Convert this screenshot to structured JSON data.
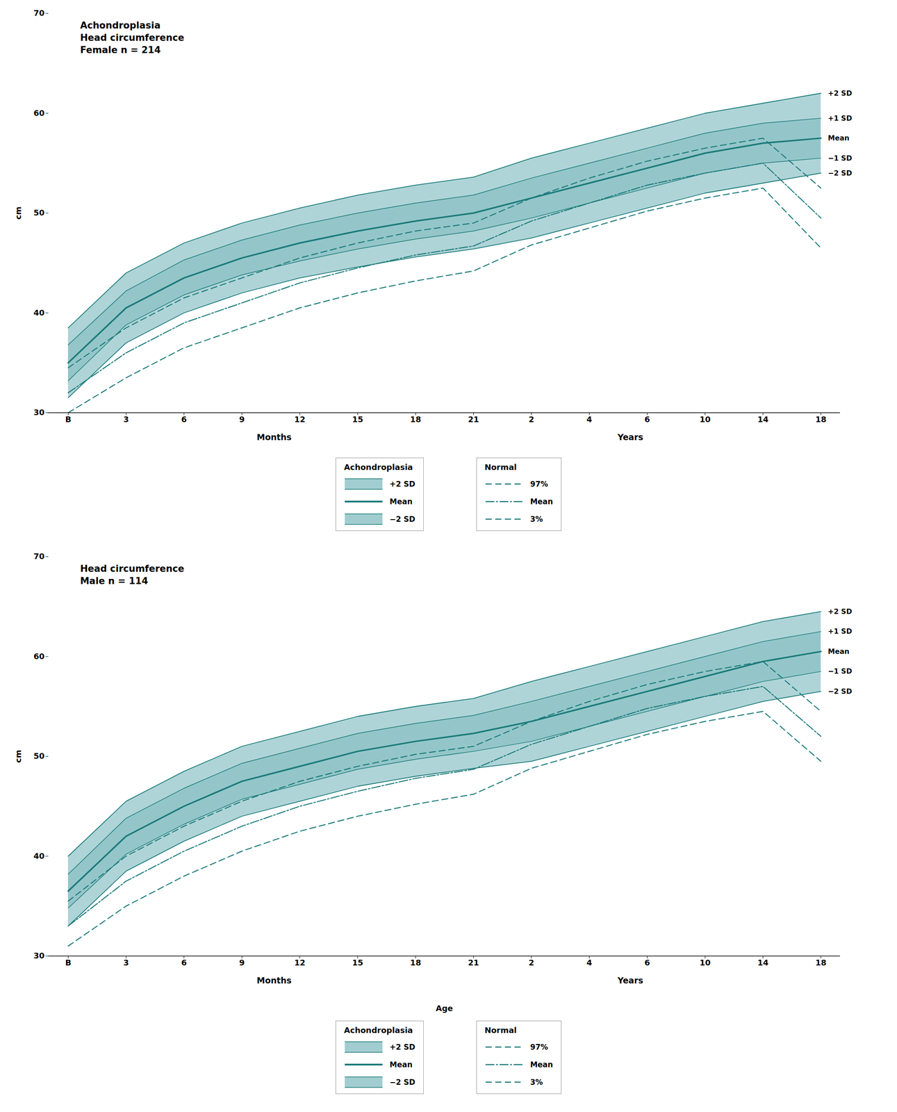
{
  "chart_data": [
    {
      "type": "line",
      "title": [
        "Achondroplasia",
        "Head circumference",
        "Female n = 214"
      ],
      "ylabel": "cm",
      "annotations": [
        "Months",
        "Years"
      ],
      "categories": [
        "B",
        "3",
        "6",
        "9",
        "12",
        "15",
        "18",
        "21",
        "2",
        "4",
        "6",
        "10",
        "14",
        "18"
      ],
      "ylim": [
        30,
        70
      ],
      "yticks": [
        30,
        40,
        50,
        60,
        70
      ],
      "grid": false,
      "legend": "bottom",
      "color": "#7ab8bc",
      "series": [
        {
          "name": "+2 SD",
          "group": "Achondroplasia",
          "color": "#1a7a7a",
          "line_style": "solid",
          "values": [
            38.5,
            44.0,
            47.0,
            49.0,
            50.5,
            51.8,
            52.8,
            53.6,
            55.5,
            57.0,
            58.5,
            60.0,
            61.0,
            62.0
          ]
        },
        {
          "name": "+1 SD",
          "group": "Achondroplasia",
          "color": "#1a7a7a",
          "line_style": "solid",
          "values": [
            36.8,
            42.2,
            45.3,
            47.3,
            48.8,
            50.0,
            51.0,
            51.8,
            53.5,
            55.0,
            56.5,
            58.0,
            59.0,
            59.5
          ]
        },
        {
          "name": "Mean",
          "group": "Achondroplasia",
          "color": "#1a7a7a",
          "line_style": "solid",
          "values": [
            35.0,
            40.5,
            43.5,
            45.5,
            47.0,
            48.2,
            49.2,
            50.0,
            51.5,
            53.0,
            54.5,
            56.0,
            57.0,
            57.5
          ]
        },
        {
          "name": "−1 SD",
          "group": "Achondroplasia",
          "color": "#1a7a7a",
          "line_style": "solid",
          "values": [
            33.2,
            38.8,
            41.8,
            43.8,
            45.2,
            46.4,
            47.4,
            48.2,
            49.5,
            51.0,
            52.5,
            54.0,
            55.0,
            55.5
          ]
        },
        {
          "name": "−2 SD",
          "group": "Achondroplasia",
          "color": "#1a7a7a",
          "line_style": "solid",
          "values": [
            31.5,
            37.0,
            40.0,
            42.0,
            43.5,
            44.6,
            45.6,
            46.4,
            47.5,
            49.0,
            50.5,
            52.0,
            53.0,
            54.0
          ]
        },
        {
          "name": "97%",
          "group": "Normal",
          "color": "#1a7a7a",
          "line_style": "dashed",
          "values": [
            34.5,
            38.5,
            41.5,
            43.5,
            45.5,
            47.0,
            48.2,
            49.0,
            51.5,
            53.5,
            55.2,
            56.5,
            57.5,
            52.5
          ]
        },
        {
          "name": "Mean",
          "group": "Normal",
          "color": "#1a7a7a",
          "line_style": "dashdot",
          "values": [
            32.0,
            36.0,
            39.0,
            41.0,
            43.0,
            44.5,
            45.8,
            46.7,
            49.2,
            51.0,
            52.8,
            54.0,
            55.0,
            49.5
          ]
        },
        {
          "name": "3%",
          "group": "Normal",
          "color": "#1a7a7a",
          "line_style": "dashed",
          "values": [
            30.0,
            33.5,
            36.5,
            38.5,
            40.5,
            42.0,
            43.2,
            44.2,
            46.8,
            48.5,
            50.2,
            51.5,
            52.5,
            46.5
          ]
        }
      ]
    },
    {
      "type": "line",
      "title": [
        "Head circumference",
        "Male n = 114"
      ],
      "ylabel": "cm",
      "xlabel": "Age",
      "annotations": [
        "Months",
        "Years"
      ],
      "categories": [
        "B",
        "3",
        "6",
        "9",
        "12",
        "15",
        "18",
        "21",
        "2",
        "4",
        "6",
        "10",
        "14",
        "18"
      ],
      "ylim": [
        30,
        70
      ],
      "yticks": [
        30,
        40,
        50,
        60,
        70
      ],
      "grid": false,
      "legend": "bottom",
      "color": "#7ab8bc",
      "series": [
        {
          "name": "+2 SD",
          "group": "Achondroplasia",
          "color": "#1a7a7a",
          "line_style": "solid",
          "values": [
            40.0,
            45.5,
            48.5,
            51.0,
            52.5,
            54.0,
            55.0,
            55.8,
            57.5,
            59.0,
            60.5,
            62.0,
            63.5,
            64.5
          ]
        },
        {
          "name": "+1 SD",
          "group": "Achondroplasia",
          "color": "#1a7a7a",
          "line_style": "solid",
          "values": [
            38.2,
            43.8,
            46.8,
            49.3,
            50.8,
            52.3,
            53.3,
            54.1,
            55.5,
            57.0,
            58.5,
            60.0,
            61.5,
            62.5
          ]
        },
        {
          "name": "Mean",
          "group": "Achondroplasia",
          "color": "#1a7a7a",
          "line_style": "solid",
          "values": [
            36.5,
            42.0,
            45.0,
            47.5,
            49.0,
            50.5,
            51.5,
            52.3,
            53.5,
            55.0,
            56.5,
            58.0,
            59.5,
            60.5
          ]
        },
        {
          "name": "−1 SD",
          "group": "Achondroplasia",
          "color": "#1a7a7a",
          "line_style": "solid",
          "values": [
            34.8,
            40.2,
            43.2,
            45.7,
            47.2,
            48.7,
            49.7,
            50.5,
            51.5,
            53.0,
            54.5,
            56.0,
            57.5,
            58.5
          ]
        },
        {
          "name": "−2 SD",
          "group": "Achondroplasia",
          "color": "#1a7a7a",
          "line_style": "solid",
          "values": [
            33.0,
            38.5,
            41.5,
            44.0,
            45.5,
            47.0,
            48.0,
            48.8,
            49.5,
            51.0,
            52.5,
            54.0,
            55.5,
            56.5
          ]
        },
        {
          "name": "97%",
          "group": "Normal",
          "color": "#1a7a7a",
          "line_style": "dashed",
          "values": [
            35.5,
            40.0,
            43.0,
            45.5,
            47.5,
            49.0,
            50.2,
            51.0,
            53.5,
            55.5,
            57.2,
            58.5,
            59.5,
            54.5
          ]
        },
        {
          "name": "Mean",
          "group": "Normal",
          "color": "#1a7a7a",
          "line_style": "dashdot",
          "values": [
            33.0,
            37.5,
            40.5,
            43.0,
            45.0,
            46.5,
            47.8,
            48.7,
            51.2,
            53.0,
            54.8,
            56.0,
            57.0,
            52.0
          ]
        },
        {
          "name": "3%",
          "group": "Normal",
          "color": "#1a7a7a",
          "line_style": "dashed",
          "values": [
            31.0,
            35.0,
            38.0,
            40.5,
            42.5,
            44.0,
            45.2,
            46.2,
            48.8,
            50.5,
            52.2,
            53.5,
            54.5,
            49.5
          ]
        }
      ]
    }
  ]
}
